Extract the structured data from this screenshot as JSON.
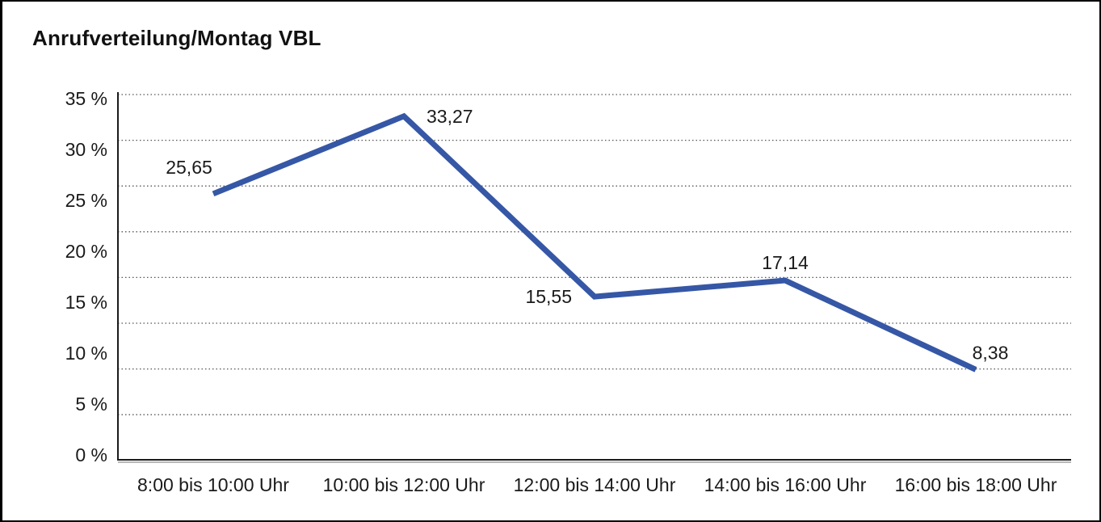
{
  "title": "Anrufverteilung/Montag VBL",
  "chart_data": {
    "type": "line",
    "title": "Anrufverteilung/Montag VBL",
    "categories": [
      "8:00 bis 10:00 Uhr",
      "10:00 bis 12:00 Uhr",
      "12:00 bis 14:00 Uhr",
      "14:00 bis 16:00 Uhr",
      "16:00 bis 18:00 Uhr"
    ],
    "values": [
      25.65,
      33.27,
      15.55,
      17.14,
      8.38
    ],
    "point_labels": [
      "25,65",
      "33,27",
      "15,55",
      "17,14",
      "8,38"
    ],
    "point_label_positions": [
      "above-left",
      "right",
      "left",
      "above",
      "above-right"
    ],
    "ytick_labels": [
      "0 %",
      "5 %",
      "10 %",
      "15 %",
      "20 %",
      "25 %",
      "30 %",
      "35 %"
    ],
    "ytick_values": [
      0,
      5,
      10,
      15,
      20,
      25,
      30,
      35
    ],
    "ylim": [
      0,
      35
    ],
    "xlabel": "",
    "ylabel": "",
    "grid": "horizontal-dotted",
    "legend": "none",
    "colors": {
      "line": "#3557A6",
      "axis": "#1b1b1b",
      "axis_shadow": "#9f9f9f",
      "grid": "#555555",
      "text": "#1a1a1a",
      "background": "#ffffff",
      "frame_border": "#000000"
    }
  }
}
